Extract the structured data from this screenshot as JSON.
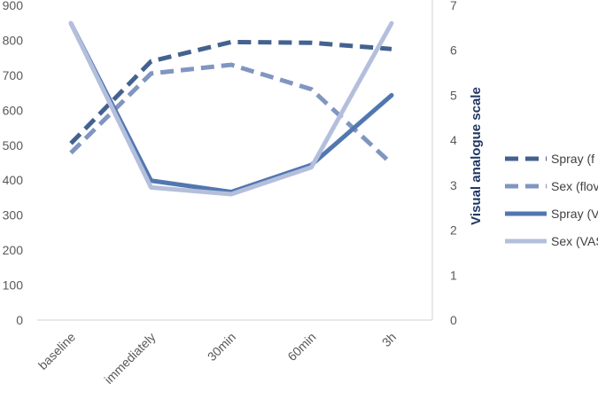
{
  "chart_data": {
    "type": "line",
    "categories": [
      "baseline",
      "immediately",
      "30min",
      "60min",
      "3h"
    ],
    "y_left": {
      "ticks": [
        "0",
        "100",
        "200",
        "300",
        "400",
        "500",
        "600",
        "700",
        "800",
        "900"
      ],
      "ylim": [
        0,
        900
      ]
    },
    "y_right": {
      "label": "Visual analogue scale",
      "ticks": [
        "0",
        "1",
        "2",
        "3",
        "4",
        "5",
        "6",
        "7"
      ],
      "ylim": [
        0,
        7
      ]
    },
    "series": [
      {
        "name": "Spray (f",
        "axis": "left",
        "style": "dashed",
        "color": "#44628f",
        "values": [
          505,
          740,
          795,
          793,
          775
        ]
      },
      {
        "name": "Sex (flov",
        "axis": "left",
        "style": "dashed",
        "color": "#8096c0",
        "values": [
          478,
          705,
          730,
          660,
          447
        ]
      },
      {
        "name": "Spray (V",
        "axis": "right",
        "style": "solid",
        "color": "#5277b0",
        "values": [
          6.6,
          3.1,
          2.85,
          3.45,
          5.0
        ]
      },
      {
        "name": "Sex (VAS",
        "axis": "right",
        "style": "solid",
        "color": "#b4bfdc",
        "values": [
          6.6,
          2.95,
          2.8,
          3.4,
          6.6
        ]
      }
    ],
    "grid": false,
    "legend": "right"
  }
}
